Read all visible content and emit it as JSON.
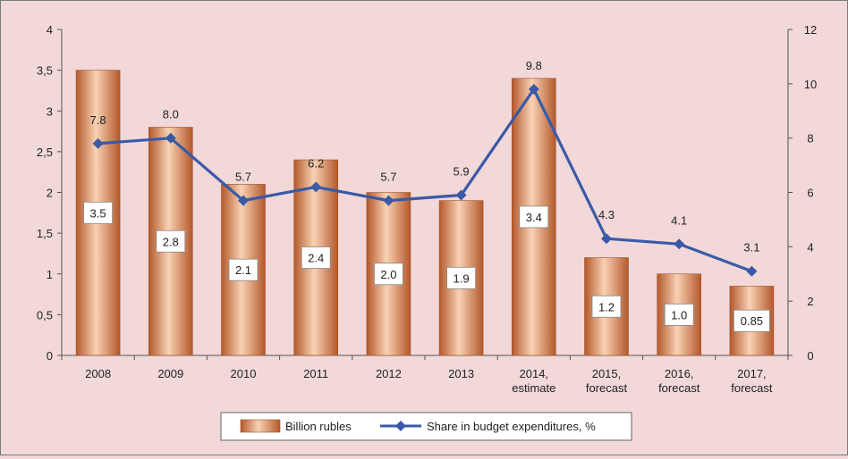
{
  "chart_data": {
    "type": "bar+line",
    "categories": [
      [
        "2008"
      ],
      [
        "2009"
      ],
      [
        "2010"
      ],
      [
        "2011"
      ],
      [
        "2012"
      ],
      [
        "2013"
      ],
      [
        "2014,",
        "estimate"
      ],
      [
        "2015,",
        "forecast"
      ],
      [
        "2016,",
        "forecast"
      ],
      [
        "2017,",
        "forecast"
      ]
    ],
    "series": [
      {
        "name": "Billion rubles",
        "type": "bar",
        "axis": "left",
        "values": [
          3.5,
          2.8,
          2.1,
          2.4,
          2.0,
          1.9,
          3.4,
          1.2,
          1.0,
          0.85
        ],
        "labels": [
          "3.5",
          "2.8",
          "2.1",
          "2.4",
          "2.0",
          "1.9",
          "3.4",
          "1.2",
          "1.0",
          "0.85"
        ]
      },
      {
        "name": "Share in budget expenditures, %",
        "type": "line",
        "axis": "right",
        "values": [
          7.8,
          8.0,
          5.7,
          6.2,
          5.7,
          5.9,
          9.8,
          4.3,
          4.1,
          3.1
        ],
        "labels": [
          "7.8",
          "8.0",
          "5.7",
          "6.2",
          "5.7",
          "5.9",
          "9.8",
          "4.3",
          "4.1",
          "3.1"
        ]
      }
    ],
    "y_left": {
      "range": [
        0,
        4
      ],
      "ticks": [
        "0",
        "0,5",
        "1",
        "1,5",
        "2",
        "2,5",
        "3",
        "3,5",
        "4"
      ]
    },
    "y_right": {
      "range": [
        0,
        12
      ],
      "ticks": [
        "0",
        "2",
        "4",
        "6",
        "8",
        "10",
        "12"
      ]
    },
    "legend": {
      "position": "bottom"
    },
    "colors": {
      "bar_light": "#f8d2b4",
      "bar_dark": "#b4582a",
      "line": "#3a5aa8",
      "background": "#f2d8d8"
    }
  }
}
